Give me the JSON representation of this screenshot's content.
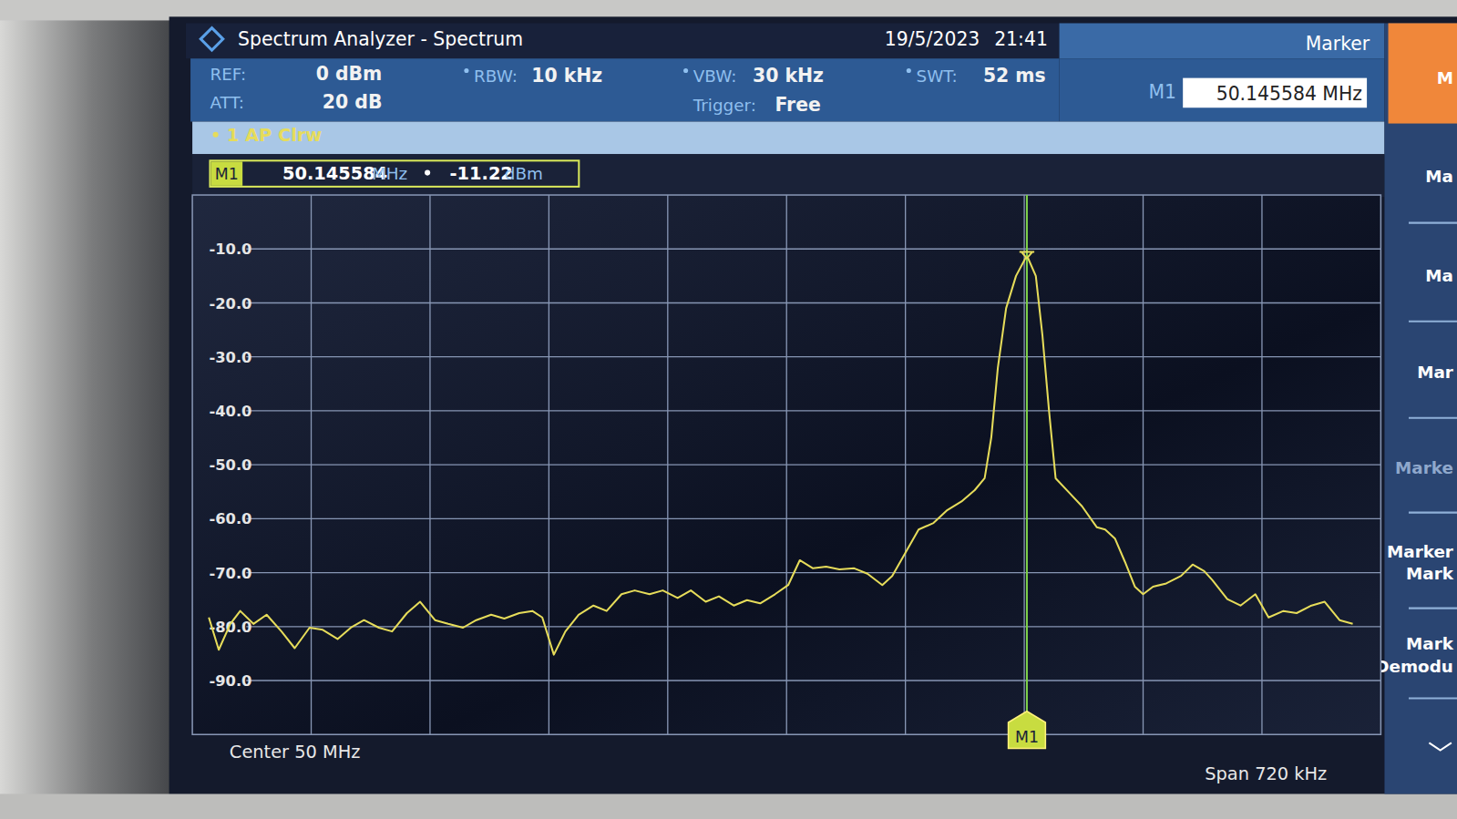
{
  "chart_data": {
    "type": "line",
    "x": [
      49.65,
      49.656,
      49.663,
      49.669,
      49.677,
      49.685,
      49.694,
      49.702,
      49.711,
      49.719,
      49.728,
      49.736,
      49.744,
      49.753,
      49.761,
      49.77,
      49.778,
      49.787,
      49.795,
      49.804,
      49.812,
      49.821,
      49.829,
      49.838,
      49.846,
      49.852,
      49.859,
      49.866,
      49.874,
      49.883,
      49.891,
      49.9,
      49.908,
      49.917,
      49.925,
      49.934,
      49.942,
      49.951,
      49.959,
      49.968,
      49.976,
      49.984,
      49.993,
      50.001,
      50.008,
      50.016,
      50.024,
      50.032,
      50.041,
      50.049,
      50.058,
      50.064,
      50.072,
      50.08,
      50.089,
      50.097,
      50.106,
      50.114,
      50.12,
      50.124,
      50.128,
      50.133,
      50.139,
      50.145584,
      50.151,
      50.155,
      50.159,
      50.163,
      50.171,
      50.179,
      50.188,
      50.193,
      50.199,
      50.205,
      50.211,
      50.216,
      50.222,
      50.23,
      50.239,
      50.246,
      50.253,
      50.258,
      50.267,
      50.275,
      50.284,
      50.292,
      50.301,
      50.309,
      50.318,
      50.326,
      50.335,
      50.343
    ],
    "series": [
      {
        "name": "1 AP Clrw",
        "color": "#e6dc5a",
        "values": [
          -78.3,
          -84.3,
          -79.5,
          -77.1,
          -79.5,
          -77.8,
          -80.9,
          -84.0,
          -80.2,
          -80.6,
          -82.3,
          -80.2,
          -78.8,
          -80.2,
          -80.9,
          -77.5,
          -75.4,
          -78.8,
          -79.5,
          -80.2,
          -78.8,
          -77.8,
          -78.5,
          -77.5,
          -77.1,
          -78.3,
          -85.2,
          -80.9,
          -77.8,
          -76.1,
          -77.1,
          -74.0,
          -73.3,
          -74.0,
          -73.3,
          -74.7,
          -73.3,
          -75.4,
          -74.4,
          -76.1,
          -75.1,
          -75.7,
          -74.0,
          -72.3,
          -67.7,
          -69.2,
          -68.9,
          -69.4,
          -69.2,
          -70.2,
          -72.3,
          -70.6,
          -66.3,
          -62.0,
          -60.8,
          -58.5,
          -56.8,
          -54.7,
          -52.5,
          -45.0,
          -32.0,
          -21.0,
          -15.0,
          -11.22,
          -15.0,
          -26.0,
          -40.0,
          -52.5,
          -55.1,
          -57.7,
          -61.6,
          -62.0,
          -63.7,
          -68.0,
          -72.6,
          -74.0,
          -72.6,
          -72.0,
          -70.6,
          -68.5,
          -69.7,
          -71.4,
          -74.9,
          -76.1,
          -74.0,
          -78.3,
          -77.1,
          -77.5,
          -76.1,
          -75.4,
          -78.8,
          -79.5
        ]
      }
    ],
    "xlim": [
      49.64,
      50.36
    ],
    "xticks": [
      49.712,
      49.784,
      49.856,
      49.928,
      50,
      50.072,
      50.144,
      50.216,
      50.288
    ],
    "ylim": [
      -100,
      0
    ],
    "yticks": [
      {
        "value": -10,
        "label": "-10.0"
      },
      {
        "value": -20,
        "label": "-20.0"
      },
      {
        "value": -30,
        "label": "-30.0"
      },
      {
        "value": -40,
        "label": "-40.0"
      },
      {
        "value": -50,
        "label": "-50.0"
      },
      {
        "value": -60,
        "label": "-60.0"
      },
      {
        "value": -70,
        "label": "-70.0"
      },
      {
        "value": -80,
        "label": "-80.0"
      },
      {
        "value": -90,
        "label": "-90.0"
      }
    ],
    "grid": true,
    "tick_labels": "y",
    "markers": [
      {
        "name": "M1",
        "x": 50.145584,
        "value": -11.22,
        "x_label": "50.145584",
        "x_unit": "MHz",
        "y_label": "-11.22",
        "y_unit": "dBm"
      }
    ],
    "x_caption_left": "Center 50 MHz",
    "x_caption_right": "Span 720 kHz"
  },
  "screen": {
    "title": "Spectrum Analyzer - Spectrum",
    "date": "19/5/2023",
    "time": "21:41",
    "panel": "Marker",
    "settings": [
      {
        "label": "REF:",
        "value": "0 dBm"
      },
      {
        "label": "ATT:",
        "value": "20 dB"
      },
      {
        "label": "RBW:",
        "value": "10 kHz"
      },
      {
        "label": "VBW:",
        "value": "30 kHz"
      },
      {
        "label": "SWT:",
        "value": "52 ms"
      },
      {
        "label": "Trigger:",
        "value": "Free"
      }
    ],
    "marker_entry": {
      "name": "M1",
      "value": "50.145584 MHz"
    },
    "sidebar": [
      "M",
      "Ma",
      "Ma",
      "Mar",
      "Marke",
      "Marker",
      "Mark",
      "Mark",
      "Demodu"
    ]
  }
}
